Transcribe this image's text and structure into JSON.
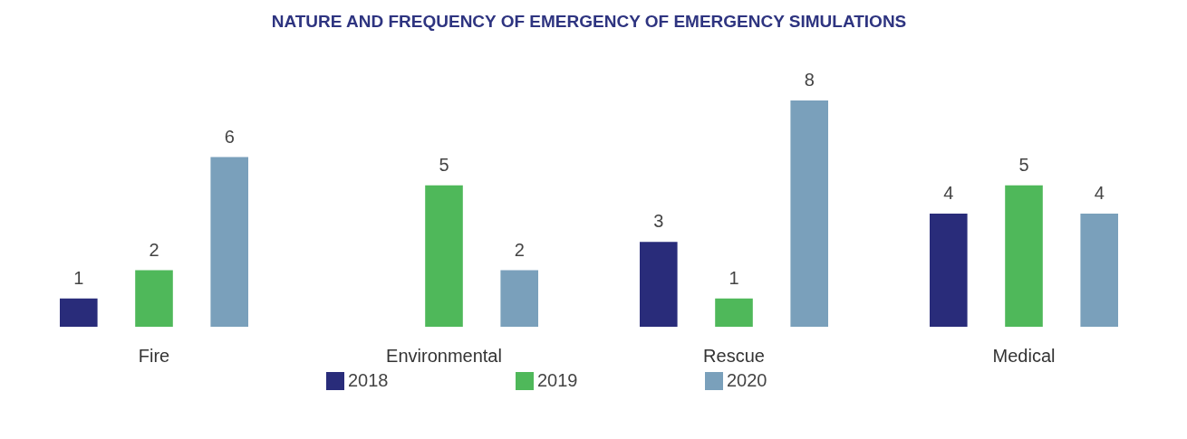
{
  "chart_data": {
    "type": "bar",
    "title": "NATURE AND FREQUENCY OF EMERGENCY OF EMERGENCY SIMULATIONS",
    "categories": [
      "Fire",
      "Environmental",
      "Rescue",
      "Medical"
    ],
    "series": [
      {
        "name": "2018",
        "color": "#292c7a",
        "values": [
          1,
          null,
          3,
          4
        ]
      },
      {
        "name": "2019",
        "color": "#4fb85a",
        "values": [
          2,
          5,
          1,
          5
        ]
      },
      {
        "name": "2020",
        "color": "#7aa0bb",
        "values": [
          6,
          2,
          8,
          4
        ]
      }
    ],
    "data_labels": true,
    "legend": "bottom",
    "grid": false
  }
}
